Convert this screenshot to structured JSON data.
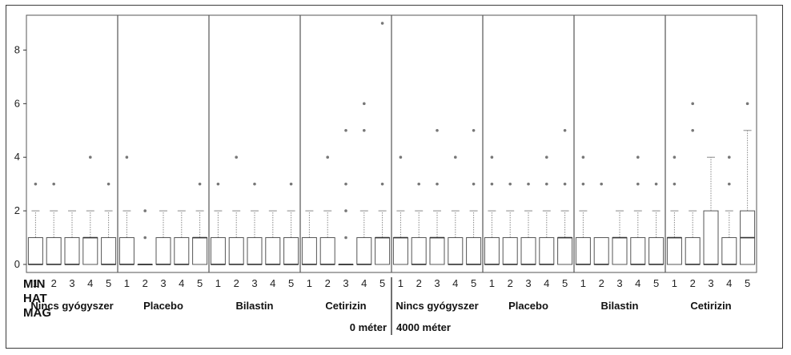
{
  "chart_data": {
    "type": "boxplot",
    "ylim": [
      -0.3,
      9.3
    ],
    "yticks": [
      0,
      2,
      4,
      6,
      8
    ],
    "row_labels": [
      "MIN",
      "HAT",
      "MAG"
    ],
    "categories": [
      "1",
      "2",
      "3",
      "4",
      "5"
    ],
    "groups": [
      {
        "name": "Nincs gyógyszer",
        "altitude": "0 méter",
        "boxes": [
          {
            "q1": 0,
            "median": 0,
            "q3": 1,
            "wlo": 0,
            "whi": 2,
            "outliers": [
              3
            ]
          },
          {
            "q1": 0,
            "median": 0,
            "q3": 1,
            "wlo": 0,
            "whi": 2,
            "outliers": [
              3
            ]
          },
          {
            "q1": 0,
            "median": 0,
            "q3": 1,
            "wlo": 0,
            "whi": 2,
            "outliers": []
          },
          {
            "q1": 0,
            "median": 1,
            "q3": 1,
            "wlo": 0,
            "whi": 2,
            "outliers": [
              4
            ]
          },
          {
            "q1": 0,
            "median": 0,
            "q3": 1,
            "wlo": 0,
            "whi": 2,
            "outliers": [
              3
            ]
          }
        ]
      },
      {
        "name": "Placebo",
        "altitude": "0 méter",
        "boxes": [
          {
            "q1": 0,
            "median": 0,
            "q3": 1,
            "wlo": 0,
            "whi": 2,
            "outliers": [
              4
            ]
          },
          {
            "q1": 0,
            "median": 0,
            "q3": 0,
            "wlo": 0,
            "whi": 0,
            "outliers": [
              1,
              2
            ]
          },
          {
            "q1": 0,
            "median": 0,
            "q3": 1,
            "wlo": 0,
            "whi": 2,
            "outliers": []
          },
          {
            "q1": 0,
            "median": 0,
            "q3": 1,
            "wlo": 0,
            "whi": 2,
            "outliers": []
          },
          {
            "q1": 0,
            "median": 1,
            "q3": 1,
            "wlo": 0,
            "whi": 2,
            "outliers": [
              3
            ]
          }
        ]
      },
      {
        "name": "Bilastin",
        "altitude": "0 méter",
        "boxes": [
          {
            "q1": 0,
            "median": 0,
            "q3": 1,
            "wlo": 0,
            "whi": 2,
            "outliers": [
              3
            ]
          },
          {
            "q1": 0,
            "median": 0,
            "q3": 1,
            "wlo": 0,
            "whi": 2,
            "outliers": [
              4
            ]
          },
          {
            "q1": 0,
            "median": 0,
            "q3": 1,
            "wlo": 0,
            "whi": 2,
            "outliers": [
              3
            ]
          },
          {
            "q1": 0,
            "median": 0,
            "q3": 1,
            "wlo": 0,
            "whi": 2,
            "outliers": []
          },
          {
            "q1": 0,
            "median": 0,
            "q3": 1,
            "wlo": 0,
            "whi": 2,
            "outliers": [
              3
            ]
          }
        ]
      },
      {
        "name": "Cetirizin",
        "altitude": "0 méter",
        "boxes": [
          {
            "q1": 0,
            "median": 0,
            "q3": 1,
            "wlo": 0,
            "whi": 2,
            "outliers": []
          },
          {
            "q1": 0,
            "median": 0,
            "q3": 1,
            "wlo": 0,
            "whi": 2,
            "outliers": [
              4
            ]
          },
          {
            "q1": 0,
            "median": 0,
            "q3": 0,
            "wlo": 0,
            "whi": 0,
            "outliers": [
              1,
              2,
              3,
              5
            ]
          },
          {
            "q1": 0,
            "median": 0,
            "q3": 1,
            "wlo": 0,
            "whi": 2,
            "outliers": [
              5,
              6
            ]
          },
          {
            "q1": 0,
            "median": 1,
            "q3": 1,
            "wlo": 0,
            "whi": 2,
            "outliers": [
              3,
              9
            ]
          }
        ]
      },
      {
        "name": "Nincs gyógyszer",
        "altitude": "4000 méter",
        "boxes": [
          {
            "q1": 0,
            "median": 1,
            "q3": 1,
            "wlo": 0,
            "whi": 2,
            "outliers": [
              4
            ]
          },
          {
            "q1": 0,
            "median": 0,
            "q3": 1,
            "wlo": 0,
            "whi": 2,
            "outliers": [
              3
            ]
          },
          {
            "q1": 0,
            "median": 1,
            "q3": 1,
            "wlo": 0,
            "whi": 2,
            "outliers": [
              3,
              5
            ]
          },
          {
            "q1": 0,
            "median": 0,
            "q3": 1,
            "wlo": 0,
            "whi": 2,
            "outliers": [
              4
            ]
          },
          {
            "q1": 0,
            "median": 0,
            "q3": 1,
            "wlo": 0,
            "whi": 2,
            "outliers": [
              3,
              5
            ]
          }
        ]
      },
      {
        "name": "Placebo",
        "altitude": "4000 méter",
        "boxes": [
          {
            "q1": 0,
            "median": 0,
            "q3": 1,
            "wlo": 0,
            "whi": 2,
            "outliers": [
              3,
              4
            ]
          },
          {
            "q1": 0,
            "median": 0,
            "q3": 1,
            "wlo": 0,
            "whi": 2,
            "outliers": [
              3
            ]
          },
          {
            "q1": 0,
            "median": 0,
            "q3": 1,
            "wlo": 0,
            "whi": 2,
            "outliers": [
              3
            ]
          },
          {
            "q1": 0,
            "median": 0,
            "q3": 1,
            "wlo": 0,
            "whi": 2,
            "outliers": [
              3,
              4
            ]
          },
          {
            "q1": 0,
            "median": 1,
            "q3": 1,
            "wlo": 0,
            "whi": 2,
            "outliers": [
              3,
              5
            ]
          }
        ]
      },
      {
        "name": "Bilastin",
        "altitude": "4000 méter",
        "boxes": [
          {
            "q1": 0,
            "median": 0,
            "q3": 1,
            "wlo": 0,
            "whi": 2,
            "outliers": [
              3,
              4
            ]
          },
          {
            "q1": 0,
            "median": 0,
            "q3": 1,
            "wlo": 0,
            "whi": 1,
            "outliers": [
              3
            ]
          },
          {
            "q1": 0,
            "median": 1,
            "q3": 1,
            "wlo": 0,
            "whi": 2,
            "outliers": []
          },
          {
            "q1": 0,
            "median": 0,
            "q3": 1,
            "wlo": 0,
            "whi": 2,
            "outliers": [
              3,
              4
            ]
          },
          {
            "q1": 0,
            "median": 0,
            "q3": 1,
            "wlo": 0,
            "whi": 2,
            "outliers": [
              3
            ]
          }
        ]
      },
      {
        "name": "Cetirizin",
        "altitude": "4000 méter",
        "boxes": [
          {
            "q1": 0,
            "median": 1,
            "q3": 1,
            "wlo": 0,
            "whi": 2,
            "outliers": [
              3,
              4
            ]
          },
          {
            "q1": 0,
            "median": 0,
            "q3": 1,
            "wlo": 0,
            "whi": 2,
            "outliers": [
              5,
              6
            ]
          },
          {
            "q1": 0,
            "median": 0,
            "q3": 2,
            "wlo": 0,
            "whi": 4,
            "outliers": []
          },
          {
            "q1": 0,
            "median": 0,
            "q3": 1,
            "wlo": 0,
            "whi": 2,
            "outliers": [
              3,
              4
            ]
          },
          {
            "q1": 0,
            "median": 1,
            "q3": 2,
            "wlo": 0,
            "whi": 5,
            "outliers": [
              6
            ]
          }
        ]
      }
    ],
    "altitude_labels": [
      "0 méter",
      "4000 méter"
    ],
    "grid": false,
    "colors": {
      "box": "#555555",
      "whisker": "#888888",
      "outlier": "#777777",
      "divider": "#555555"
    }
  }
}
